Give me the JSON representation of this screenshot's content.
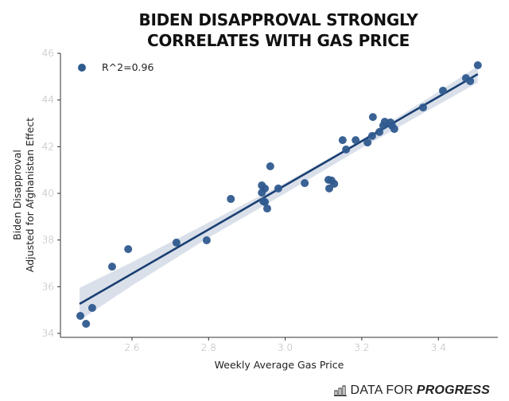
{
  "chart_data": {
    "type": "scatter",
    "title_lines": [
      "BIDEN DISAPPROVAL STRONGLY",
      "CORRELATES WITH GAS PRICE"
    ],
    "xlabel": "Weekly Average Gas Price",
    "ylabel_lines": [
      "Biden Disapproval",
      "Adjusted for Afghanistan Effect"
    ],
    "xlim": [
      2.44,
      3.55
    ],
    "ylim": [
      33.9,
      46.1
    ],
    "xticks": [
      2.6,
      2.8,
      3.0,
      3.2,
      3.4
    ],
    "xtick_labels": [
      "2.6",
      "2.8",
      "3.0",
      "3.2",
      "3.4"
    ],
    "yticks": [
      34,
      36,
      38,
      40,
      42,
      44,
      46
    ],
    "ytick_labels": [
      "34",
      "36",
      "38",
      "40",
      "42",
      "44",
      "46"
    ],
    "grid": false,
    "legend": {
      "label": "R^2=0.96",
      "position": "top-left"
    },
    "colors": {
      "points": "#2f5a8e",
      "line": "#1a3f73",
      "band": "#d6dde8"
    },
    "points": [
      {
        "x": 2.465,
        "y": 34.75
      },
      {
        "x": 2.48,
        "y": 34.41
      },
      {
        "x": 2.496,
        "y": 35.09
      },
      {
        "x": 2.548,
        "y": 36.86
      },
      {
        "x": 2.59,
        "y": 37.61
      },
      {
        "x": 2.716,
        "y": 37.89
      },
      {
        "x": 2.795,
        "y": 37.99
      },
      {
        "x": 2.858,
        "y": 39.76
      },
      {
        "x": 2.939,
        "y": 40.34
      },
      {
        "x": 2.947,
        "y": 40.21
      },
      {
        "x": 2.939,
        "y": 40.03
      },
      {
        "x": 2.943,
        "y": 39.66
      },
      {
        "x": 2.947,
        "y": 39.63
      },
      {
        "x": 2.953,
        "y": 39.35
      },
      {
        "x": 2.961,
        "y": 41.16
      },
      {
        "x": 2.982,
        "y": 40.21
      },
      {
        "x": 3.051,
        "y": 40.44
      },
      {
        "x": 3.113,
        "y": 40.58
      },
      {
        "x": 3.121,
        "y": 40.55
      },
      {
        "x": 3.128,
        "y": 40.41
      },
      {
        "x": 3.115,
        "y": 40.21
      },
      {
        "x": 3.15,
        "y": 42.28
      },
      {
        "x": 3.159,
        "y": 41.88
      },
      {
        "x": 3.184,
        "y": 42.28
      },
      {
        "x": 3.215,
        "y": 42.18
      },
      {
        "x": 3.227,
        "y": 42.46
      },
      {
        "x": 3.229,
        "y": 43.27
      },
      {
        "x": 3.246,
        "y": 42.63
      },
      {
        "x": 3.256,
        "y": 42.9
      },
      {
        "x": 3.26,
        "y": 43.07
      },
      {
        "x": 3.275,
        "y": 43.04
      },
      {
        "x": 3.279,
        "y": 42.9
      },
      {
        "x": 3.285,
        "y": 42.76
      },
      {
        "x": 3.36,
        "y": 43.68
      },
      {
        "x": 3.412,
        "y": 44.4
      },
      {
        "x": 3.472,
        "y": 44.94
      },
      {
        "x": 3.483,
        "y": 44.81
      },
      {
        "x": 3.503,
        "y": 45.49
      }
    ],
    "regression": {
      "x_start": 2.463,
      "y_start": 35.26,
      "x_end": 3.503,
      "y_end": 45.11,
      "ci_band": [
        {
          "x": 2.463,
          "lo": 34.55,
          "hi": 35.95
        },
        {
          "x": 2.6,
          "lo": 36.05,
          "hi": 37.05
        },
        {
          "x": 2.8,
          "lo": 38.1,
          "hi": 38.75
        },
        {
          "x": 3.0,
          "lo": 40.0,
          "hi": 40.45
        },
        {
          "x": 3.2,
          "lo": 41.95,
          "hi": 42.3
        },
        {
          "x": 3.4,
          "lo": 43.8,
          "hi": 44.35
        },
        {
          "x": 3.503,
          "lo": 44.75,
          "hi": 45.45
        }
      ]
    }
  },
  "branding": {
    "prefix": "DATA FOR",
    "emphasis": "PROGRESS",
    "icon": "bar-chart-icon"
  }
}
